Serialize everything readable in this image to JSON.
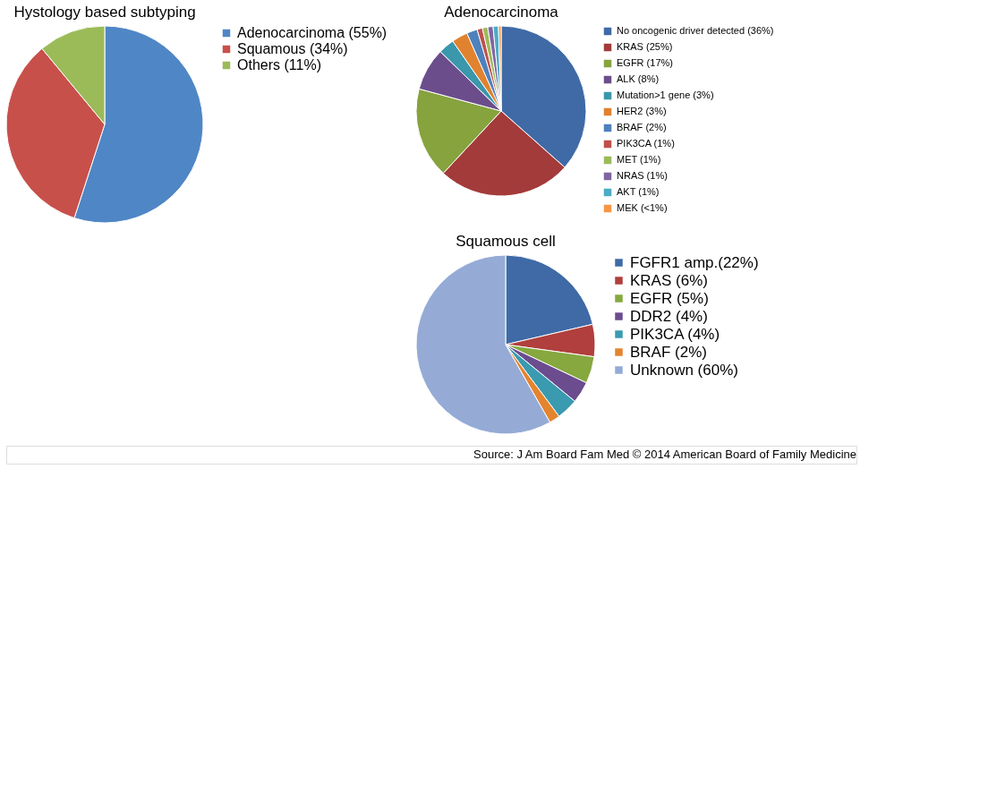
{
  "chart_data": [
    {
      "type": "pie",
      "title": "Hystology based subtyping",
      "categories": [
        "Adenocarcinoma (55%)",
        "Squamous (34%)",
        "Others (11%)"
      ],
      "values": [
        55,
        34,
        11
      ],
      "colors": [
        "#4f86c6",
        "#c8504b",
        "#9bbb59"
      ],
      "legend": "right"
    },
    {
      "type": "pie",
      "title": "Adenocarcinoma",
      "categories": [
        "No oncogenic driver detected (36%)",
        "KRAS (25%)",
        "EGFR (17%)",
        "ALK (8%)",
        "Mutation>1 gene (3%)",
        "HER2 (3%)",
        "BRAF (2%)",
        "PIK3CA (1%)",
        "MET (1%)",
        "NRAS (1%)",
        "AKT (1%)",
        "MEK (<1%)"
      ],
      "values": [
        36,
        25,
        17,
        8,
        3,
        3,
        2,
        1,
        1,
        1,
        1,
        0.5
      ],
      "colors": [
        "#3f6aa6",
        "#a33b3a",
        "#86a33e",
        "#6c4d8c",
        "#3a97ac",
        "#e0822f",
        "#4f81bd",
        "#c0504d",
        "#9bbb59",
        "#8064a2",
        "#4bacc6",
        "#f79646"
      ],
      "legend": "right"
    },
    {
      "type": "pie",
      "title": "Squamous cell",
      "categories": [
        "FGFR1 amp.(22%)",
        "KRAS (6%)",
        "EGFR (5%)",
        "DDR2 (4%)",
        "PIK3CA (4%)",
        "BRAF (2%)",
        "Unknown (60%)"
      ],
      "values": [
        22,
        6,
        5,
        4,
        4,
        2,
        60
      ],
      "colors": [
        "#3f6aa6",
        "#b03f3d",
        "#86a83f",
        "#6b4c8e",
        "#3a9ab0",
        "#e5842f",
        "#95abd6"
      ],
      "legend": "right",
      "annotations": [
        "Source: J Am Board Fam Med © 2014 American Board of Family Medicine"
      ]
    }
  ]
}
